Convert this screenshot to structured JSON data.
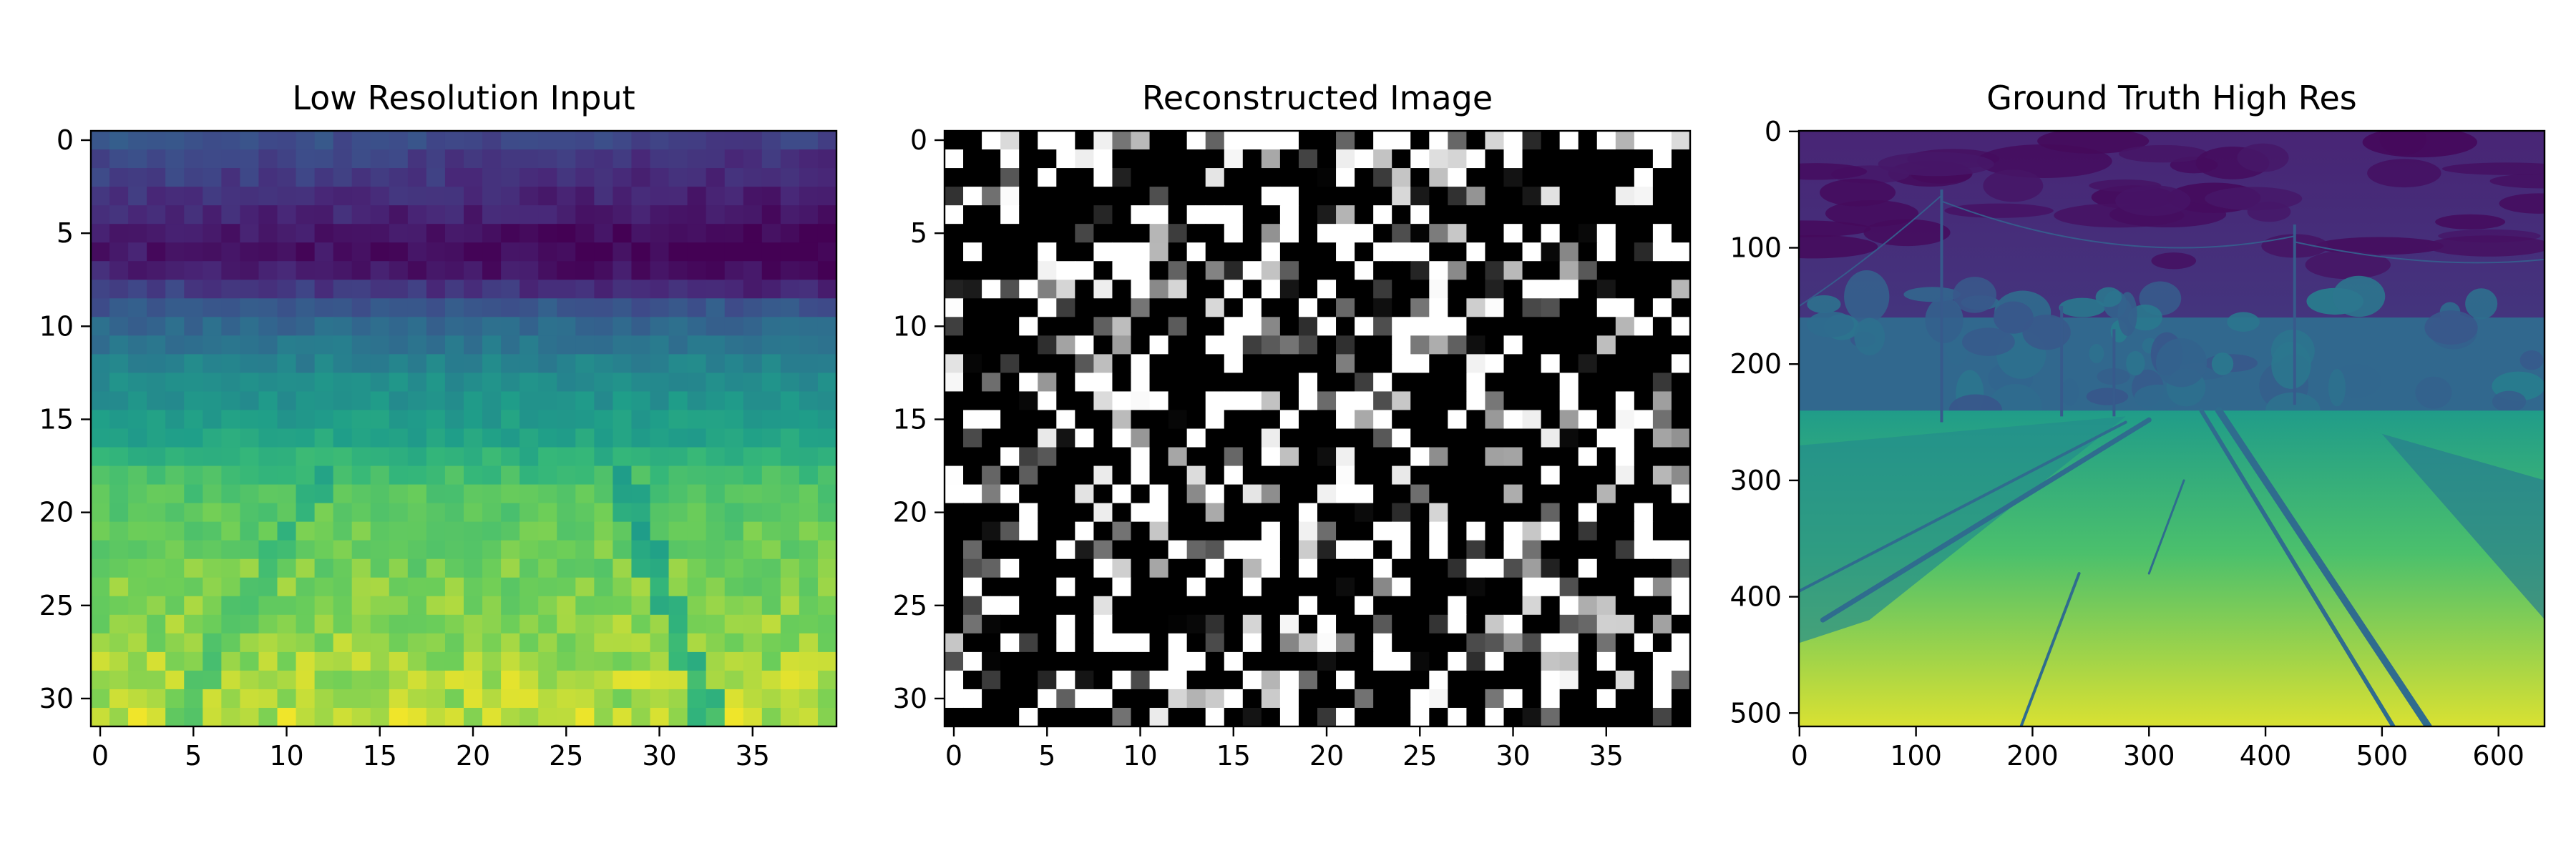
{
  "chart_data": [
    {
      "type": "heatmap",
      "title": "Low Resolution Input",
      "colormap": "viridis",
      "rows": 32,
      "cols": 40,
      "xlim": [
        -0.5,
        39.5
      ],
      "ylim": [
        31.5,
        -0.5
      ],
      "xticks": [
        0,
        5,
        10,
        15,
        20,
        25,
        30,
        35
      ],
      "yticks": [
        0,
        5,
        10,
        15,
        20,
        25,
        30
      ],
      "grid": false,
      "row_profile": [
        0.3,
        0.25,
        0.22,
        0.18,
        0.15,
        0.1,
        0.08,
        0.12,
        0.22,
        0.3,
        0.38,
        0.44,
        0.5,
        0.55,
        0.58,
        0.62,
        0.66,
        0.72,
        0.78,
        0.82,
        0.84,
        0.85,
        0.86,
        0.87,
        0.88,
        0.89,
        0.9,
        0.91,
        0.92,
        0.93,
        0.93,
        0.94
      ],
      "value_range": [
        0,
        1
      ]
    },
    {
      "type": "heatmap",
      "title": "Reconstructed Image",
      "colormap": "gray",
      "rows": 32,
      "cols": 40,
      "xlim": [
        -0.5,
        39.5
      ],
      "ylim": [
        31.5,
        -0.5
      ],
      "xticks": [
        0,
        5,
        10,
        15,
        20,
        25,
        30,
        35
      ],
      "yticks": [
        0,
        5,
        10,
        15,
        20,
        25,
        30
      ],
      "grid": false,
      "value_range": [
        0,
        1
      ]
    },
    {
      "type": "heatmap",
      "title": "Ground Truth High Res",
      "colormap": "viridis",
      "rows": 512,
      "cols": 640,
      "xlim": [
        -0.5,
        639.5
      ],
      "ylim": [
        511.5,
        -0.5
      ],
      "xticks": [
        0,
        100,
        200,
        300,
        400,
        500,
        600
      ],
      "yticks": [
        0,
        100,
        200,
        300,
        400,
        500
      ],
      "grid": false,
      "value_range": [
        0,
        1
      ]
    }
  ]
}
